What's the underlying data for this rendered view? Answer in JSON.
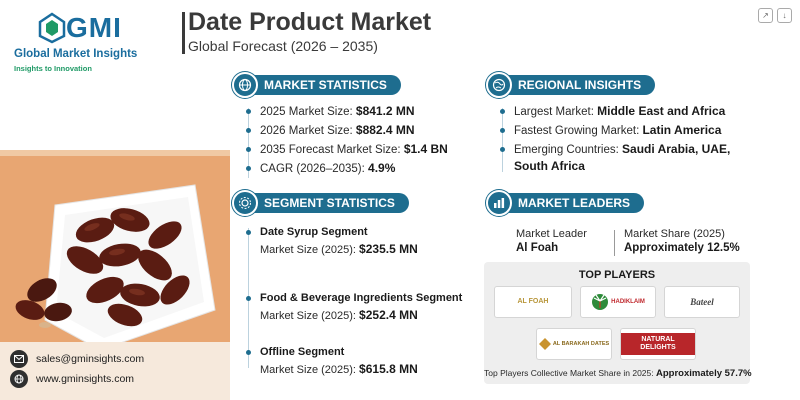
{
  "brand": {
    "logo_text": "GMI",
    "name": "Global Market Insights",
    "tagline": "Insights to Innovation"
  },
  "header": {
    "title": "Date Product Market",
    "subtitle": "Global Forecast (2026 – 2035)"
  },
  "contact": {
    "email": "sales@gminsights.com",
    "website": "www.gminsights.com"
  },
  "market_statistics": {
    "heading": "MARKET STATISTICS",
    "items": [
      {
        "label": "2025 Market Size:",
        "value": "$841.2 MN"
      },
      {
        "label": "2026 Market Size:",
        "value": "$882.4 MN"
      },
      {
        "label": "2035 Forecast Market Size:",
        "value": "$1.4 BN"
      },
      {
        "label": "CAGR (2026–2035):",
        "value": "4.9%"
      }
    ]
  },
  "regional_insights": {
    "heading": "REGIONAL INSIGHTS",
    "items": [
      {
        "label": "Largest Market:",
        "value": "Middle East and Africa"
      },
      {
        "label": "Fastest Growing Market:",
        "value": "Latin America"
      },
      {
        "label": "Emerging Countries:",
        "value": "Saudi Arabia, UAE, South Africa"
      }
    ]
  },
  "segment_statistics": {
    "heading": "SEGMENT STATISTICS",
    "items": [
      {
        "name": "Date Syrup Segment",
        "label": "Market Size (2025):",
        "value": "$235.5 MN"
      },
      {
        "name": "Food & Beverage Ingredients Segment",
        "label": "Market Size (2025):",
        "value": "$252.4 MN"
      },
      {
        "name": "Offline Segment",
        "label": "Market Size (2025):",
        "value": "$615.8 MN"
      }
    ]
  },
  "market_leaders": {
    "heading": "MARKET LEADERS",
    "leader_label": "Market Leader",
    "leader_value": "Al Foah",
    "share_label": "Market Share (2025)",
    "share_value": "Approximately 12.5%"
  },
  "top_players": {
    "heading": "TOP PLAYERS",
    "logos": [
      {
        "text": "AL FOAH",
        "icon": "al-foah-logo"
      },
      {
        "text": "HADIKLAIM",
        "icon": "hadiklaim-logo"
      },
      {
        "text": "Bateel",
        "icon": "bateel-logo"
      },
      {
        "text": "AL BARAKAH DATES",
        "icon": "al-barakah-logo"
      },
      {
        "text": "NATURAL DELIGHTS",
        "icon": "natural-delights-logo"
      }
    ],
    "share_label": "Top Players Collective Market Share in 2025:",
    "share_value": "Approximately 57.7%"
  },
  "colors": {
    "accent": "#1e6d8f",
    "brand_blue": "#1a6d9e",
    "brand_green": "#1f9a66",
    "photo_table": "#e8a672"
  }
}
